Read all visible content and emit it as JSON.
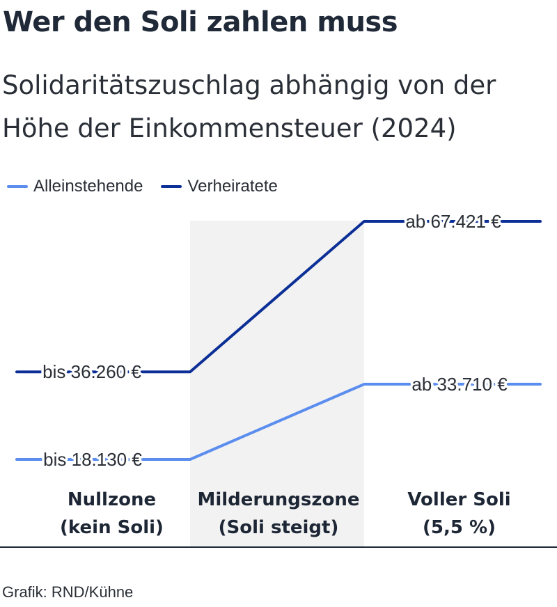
{
  "title": "Wer den Soli zahlen muss",
  "subtitle": "Solidaritätszuschlag abhängig von der Höhe der Einkommensteuer (2024)",
  "legend": [
    {
      "label": "Alleinstehende",
      "color": "#5b8def"
    },
    {
      "label": "Verheiratete",
      "color": "#0b2f96"
    }
  ],
  "footer": "Grafik: RND/Kühne",
  "chart_data": {
    "type": "line",
    "zones": [
      {
        "line1": "Nullzone",
        "line2": "(kein Soli)"
      },
      {
        "line1": "Milderungszone",
        "line2": "(Soli steigt)"
      },
      {
        "line1": "Voller Soli",
        "line2": "(5,5 %)"
      }
    ],
    "highlight_zone": 1,
    "shade_color": "#f2f2f2",
    "series": [
      {
        "name": "Alleinstehende",
        "color": "#5b8def",
        "start_value": 18130,
        "end_value": 33710,
        "start_label": "bis 18.130 €",
        "end_label": "ab 33.710 €"
      },
      {
        "name": "Verheiratete",
        "color": "#0b2f96",
        "start_value": 36260,
        "end_value": 67421,
        "start_label": "bis 36.260 €",
        "end_label": "ab 67.421 €"
      }
    ]
  }
}
